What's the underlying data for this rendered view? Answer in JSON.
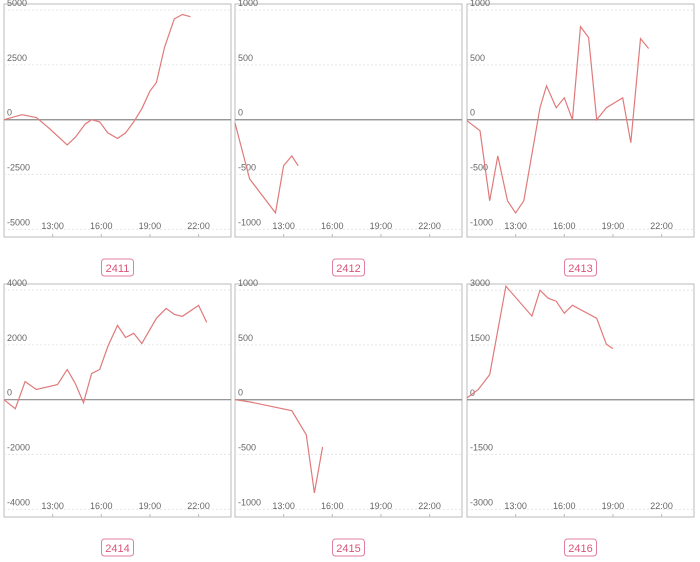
{
  "chart_data": [
    {
      "type": "line",
      "title": "2411",
      "color": "#e07a7a",
      "x": [
        10.0,
        11.1,
        12.0,
        12.8,
        13.9,
        14.4,
        15.0,
        15.4,
        15.9,
        16.4,
        17.0,
        17.5,
        18.0,
        18.5,
        19.0,
        19.4,
        19.9,
        20.5,
        21.0,
        21.5
      ],
      "values": [
        0,
        230,
        100,
        -400,
        -1150,
        -800,
        -200,
        0,
        -100,
        -600,
        -850,
        -600,
        -100,
        500,
        1300,
        1700,
        3300,
        4600,
        4800,
        4700
      ],
      "xlim": [
        10,
        24
      ],
      "xticks": [
        {
          "value": 13,
          "label": "13:00"
        },
        {
          "value": 16,
          "label": "16:00"
        },
        {
          "value": 19,
          "label": "19:00"
        },
        {
          "value": 22,
          "label": "22:00"
        }
      ],
      "ylim": [
        -5350,
        5280
      ],
      "yticks": [
        -5000,
        -2500,
        0,
        2500,
        5000
      ]
    },
    {
      "type": "line",
      "title": "2412",
      "color": "#e07a7a",
      "x": [
        10.0,
        10.9,
        12.5,
        13.0,
        13.5,
        13.9
      ],
      "values": [
        -30,
        -540,
        -850,
        -420,
        -330,
        -420
      ],
      "xlim": [
        10,
        24
      ],
      "xticks": [
        {
          "value": 13,
          "label": "13:00"
        },
        {
          "value": 16,
          "label": "16:00"
        },
        {
          "value": 19,
          "label": "19:00"
        },
        {
          "value": 22,
          "label": "22:00"
        }
      ],
      "ylim": [
        -1070,
        1056
      ],
      "yticks": [
        -1000,
        -500,
        0,
        500,
        1000
      ]
    },
    {
      "type": "line",
      "title": "2413",
      "color": "#e07a7a",
      "x": [
        10.0,
        10.8,
        11.4,
        11.9,
        12.5,
        13.0,
        13.5,
        14.5,
        14.9,
        15.5,
        16.0,
        16.5,
        17.0,
        17.5,
        18.0,
        18.6,
        19.6,
        20.1,
        20.7,
        21.2
      ],
      "values": [
        -10,
        -100,
        -740,
        -330,
        -740,
        -850,
        -740,
        110,
        310,
        110,
        200,
        0,
        850,
        750,
        0,
        110,
        200,
        -210,
        740,
        650
      ],
      "xlim": [
        10,
        24
      ],
      "xticks": [
        {
          "value": 13,
          "label": "13:00"
        },
        {
          "value": 16,
          "label": "16:00"
        },
        {
          "value": 19,
          "label": "19:00"
        },
        {
          "value": 22,
          "label": "22:00"
        }
      ],
      "ylim": [
        -1070,
        1056
      ],
      "yticks": [
        -1000,
        -500,
        0,
        500,
        1000
      ]
    },
    {
      "type": "line",
      "title": "2414",
      "color": "#e07a7a",
      "x": [
        10.0,
        10.7,
        11.3,
        12.0,
        13.3,
        13.9,
        14.4,
        14.9,
        15.4,
        15.9,
        16.4,
        17.0,
        17.5,
        18.0,
        18.5,
        19.4,
        20.0,
        20.5,
        21.0,
        22.0,
        22.5
      ],
      "values": [
        0,
        -330,
        660,
        370,
        550,
        1100,
        590,
        -110,
        950,
        1100,
        1940,
        2710,
        2270,
        2420,
        2050,
        2970,
        3330,
        3110,
        3040,
        3440,
        2820
      ],
      "xlim": [
        10,
        24
      ],
      "xticks": [
        {
          "value": 13,
          "label": "13:00"
        },
        {
          "value": 16,
          "label": "16:00"
        },
        {
          "value": 19,
          "label": "19:00"
        },
        {
          "value": 22,
          "label": "22:00"
        }
      ],
      "ylim": [
        -4280,
        4220
      ],
      "yticks": [
        -4000,
        -2000,
        0,
        2000,
        4000
      ]
    },
    {
      "type": "line",
      "title": "2415",
      "color": "#e07a7a",
      "x": [
        10.0,
        10.9,
        13.5,
        14.4,
        14.9,
        15.4
      ],
      "values": [
        0,
        -20,
        -100,
        -320,
        -850,
        -430
      ],
      "xlim": [
        10,
        24
      ],
      "xticks": [
        {
          "value": 13,
          "label": "13:00"
        },
        {
          "value": 16,
          "label": "16:00"
        },
        {
          "value": 19,
          "label": "19:00"
        },
        {
          "value": 22,
          "label": "22:00"
        }
      ],
      "ylim": [
        -1070,
        1056
      ],
      "yticks": [
        -1000,
        -500,
        0,
        500,
        1000
      ]
    },
    {
      "type": "line",
      "title": "2416",
      "color": "#e07a7a",
      "x": [
        10.0,
        10.7,
        11.4,
        12.4,
        14.0,
        14.5,
        15.0,
        15.5,
        16.0,
        16.5,
        18.0,
        18.6,
        19.0
      ],
      "values": [
        50,
        280,
        690,
        3110,
        2290,
        3000,
        2780,
        2700,
        2370,
        2590,
        2230,
        1520,
        1400
      ],
      "xlim": [
        10,
        24
      ],
      "xticks": [
        {
          "value": 13,
          "label": "13:00"
        },
        {
          "value": 16,
          "label": "16:00"
        },
        {
          "value": 19,
          "label": "19:00"
        },
        {
          "value": 22,
          "label": "22:00"
        }
      ],
      "ylim": [
        -3210,
        3170
      ],
      "yticks": [
        -3000,
        -1500,
        0,
        1500,
        3000
      ]
    }
  ]
}
